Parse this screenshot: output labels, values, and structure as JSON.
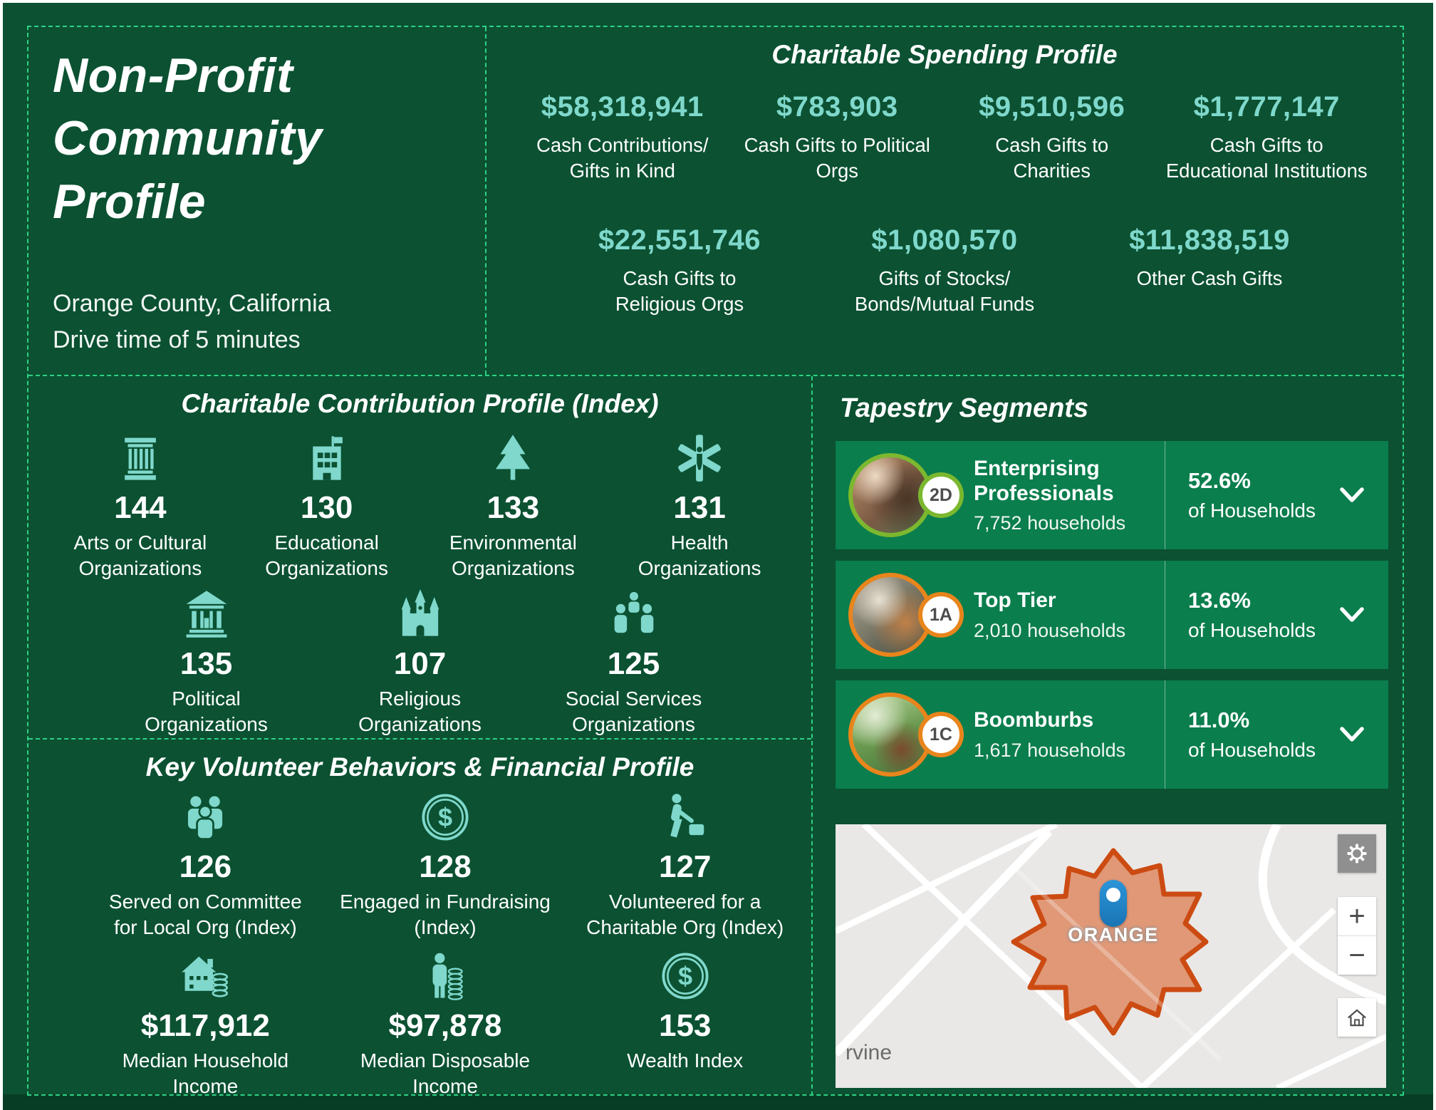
{
  "page": {
    "title": "Non-Profit Community Profile",
    "subtitle_line1": "Orange County, California",
    "subtitle_line2": "Drive time of 5 minutes"
  },
  "colors": {
    "background": "#0B5132",
    "card_green": "#0A7E4D",
    "accent_teal": "#7FD8CB",
    "dashed_border": "#2ED184",
    "ring_green": "#7CB82F",
    "ring_orange": "#E8851C",
    "map_polygon_fill": "#DE8A63",
    "map_polygon_border": "#CC4B12",
    "pin_blue": "#1F86C6"
  },
  "spending": {
    "heading": "Charitable Spending Profile",
    "row1": [
      {
        "value": "$58,318,941",
        "label": "Cash Contributions/ Gifts in Kind"
      },
      {
        "value": "$783,903",
        "label": "Cash Gifts to Political Orgs"
      },
      {
        "value": "$9,510,596",
        "label": "Cash Gifts to Charities"
      },
      {
        "value": "$1,777,147",
        "label": "Cash Gifts to Educational Institutions"
      }
    ],
    "row2": [
      {
        "value": "$22,551,746",
        "label": "Cash Gifts to Religious Orgs"
      },
      {
        "value": "$1,080,570",
        "label": "Gifts of Stocks/ Bonds/Mutual Funds"
      },
      {
        "value": "$11,838,519",
        "label": "Other Cash Gifts"
      }
    ]
  },
  "contribution": {
    "heading": "Charitable Contribution Profile (Index)",
    "row1": [
      {
        "icon": "column-icon",
        "value": "144",
        "label": "Arts or Cultural Organizations"
      },
      {
        "icon": "school-icon",
        "value": "130",
        "label": "Educational Organizations"
      },
      {
        "icon": "pine-tree-icon",
        "value": "133",
        "label": "Environmental Organizations"
      },
      {
        "icon": "star-of-life-icon",
        "value": "131",
        "label": "Health Organizations"
      }
    ],
    "row2": [
      {
        "icon": "bank-icon",
        "value": "135",
        "label": "Political Organizations"
      },
      {
        "icon": "church-icon",
        "value": "107",
        "label": "Religious Organizations"
      },
      {
        "icon": "people-group-icon",
        "value": "125",
        "label": "Social Services Organizations"
      }
    ]
  },
  "volunteer": {
    "heading": "Key Volunteer Behaviors & Financial Profile",
    "row1": [
      {
        "icon": "committee-people-icon",
        "value": "126",
        "label": "Served on Committee for Local Org (Index)"
      },
      {
        "icon": "dollar-coin-icon",
        "value": "128",
        "label": "Engaged in Fundraising (Index)"
      },
      {
        "icon": "lawn-mower-icon",
        "value": "127",
        "label": "Volunteered for a Charitable Org (Index)"
      }
    ],
    "row2": [
      {
        "icon": "house-coins-icon",
        "value": "$117,912",
        "label": "Median Household Income"
      },
      {
        "icon": "person-coins-icon",
        "value": "$97,878",
        "label": "Median Disposable Income"
      },
      {
        "icon": "dollar-coin-icon",
        "value": "153",
        "label": "Wealth Index"
      }
    ]
  },
  "tapestry": {
    "heading": "Tapestry Segments",
    "chevron_icon": "chevron-down-icon",
    "segments": [
      {
        "code": "2D",
        "name": "Enterprising Professionals",
        "households": "7,752 households",
        "percent": "52.6%",
        "percent_label": "of Households",
        "ring_color": "#7CB82F"
      },
      {
        "code": "1A",
        "name": "Top Tier",
        "households": "2,010 households",
        "percent": "13.6%",
        "percent_label": "of Households",
        "ring_color": "#E8851C"
      },
      {
        "code": "1C",
        "name": "Boomburbs",
        "households": "1,617 households",
        "percent": "11.0%",
        "percent_label": "of Households",
        "ring_color": "#E8851C"
      }
    ]
  },
  "map": {
    "area_label": "ORANGE",
    "place_label": "rvine",
    "controls": {
      "settings_icon": "gear-icon",
      "zoom_in": "+",
      "zoom_out": "−",
      "home_icon": "home-icon"
    }
  }
}
